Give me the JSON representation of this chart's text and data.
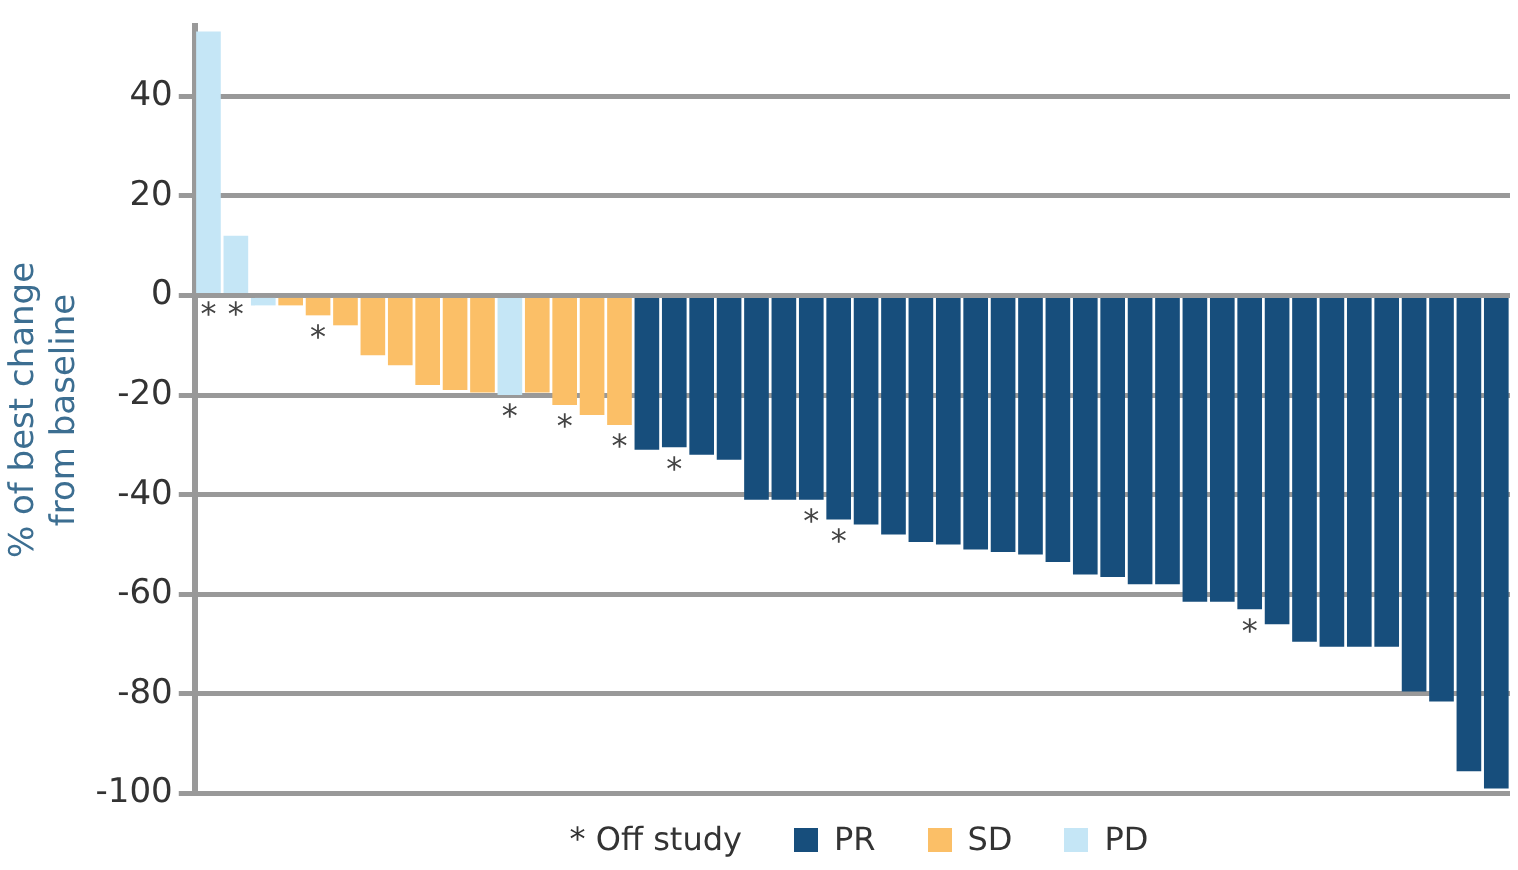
{
  "chart_data": {
    "type": "bar",
    "ylabel": "% of best change from baseline",
    "categories": [
      null,
      null,
      null,
      null,
      null,
      null,
      null,
      null,
      null,
      null,
      null,
      null,
      null,
      null,
      null,
      null,
      null,
      null,
      null,
      null,
      null,
      null,
      null,
      null,
      null,
      null,
      null,
      null,
      null,
      null,
      null,
      null,
      null,
      null,
      null,
      null,
      null,
      null,
      null,
      null,
      null,
      null,
      null,
      null,
      null,
      null,
      null,
      null
    ],
    "series": [
      {
        "name": "PR",
        "color": "#174e7c",
        "values": [
          null,
          null,
          null,
          null,
          null,
          null,
          null,
          null,
          null,
          null,
          null,
          null,
          null,
          null,
          null,
          null,
          -31,
          -30.5,
          -32,
          -33,
          -41,
          -41,
          -41,
          -45,
          -46,
          -48,
          -49.5,
          -50,
          -51,
          -51.5,
          -52,
          -53.5,
          -56,
          -56.5,
          -58,
          -58,
          -61.5,
          -61.5,
          -63,
          -66,
          -69.5,
          -70.5,
          -70.5,
          -70.5,
          -79.5,
          -81.5,
          -95.5,
          -99
        ],
        "value_labels": [
          null,
          null,
          null,
          null,
          null,
          null,
          null,
          null,
          null,
          null,
          null,
          null,
          null,
          null,
          null,
          null,
          null,
          "*",
          null,
          null,
          null,
          null,
          "*",
          "*",
          null,
          null,
          null,
          null,
          null,
          null,
          null,
          null,
          null,
          null,
          null,
          null,
          null,
          null,
          "*",
          null,
          null,
          null,
          null,
          null,
          null,
          null,
          null,
          null
        ]
      },
      {
        "name": "SD",
        "color": "#fbbf67",
        "values": [
          null,
          null,
          null,
          -2,
          -4,
          -6,
          -12,
          -14,
          -18,
          -19,
          -19.5,
          null,
          -19.5,
          -22,
          -24,
          -26,
          null,
          null,
          null,
          null,
          null,
          null,
          null,
          null,
          null,
          null,
          null,
          null,
          null,
          null,
          null,
          null,
          null,
          null,
          null,
          null,
          null,
          null,
          null,
          null,
          null,
          null,
          null,
          null,
          null,
          null,
          null,
          null
        ],
        "value_labels": [
          null,
          null,
          null,
          null,
          "*",
          null,
          null,
          null,
          null,
          null,
          null,
          null,
          null,
          "*",
          null,
          "*",
          null,
          null,
          null,
          null,
          null,
          null,
          null,
          null,
          null,
          null,
          null,
          null,
          null,
          null,
          null,
          null,
          null,
          null,
          null,
          null,
          null,
          null,
          null,
          null,
          null,
          null,
          null,
          null,
          null,
          null,
          null,
          null
        ]
      },
      {
        "name": "PD",
        "color": "#c5e6f6",
        "values": [
          53,
          12,
          -2,
          null,
          null,
          null,
          null,
          null,
          null,
          null,
          null,
          -20,
          null,
          null,
          null,
          null,
          null,
          null,
          null,
          null,
          null,
          null,
          null,
          null,
          null,
          null,
          null,
          null,
          null,
          null,
          null,
          null,
          null,
          null,
          null,
          null,
          null,
          null,
          null,
          null,
          null,
          null,
          null,
          null,
          null,
          null,
          null,
          null
        ],
        "value_labels": [
          "*",
          "*",
          null,
          null,
          null,
          null,
          null,
          null,
          null,
          null,
          null,
          "*",
          null,
          null,
          null,
          null,
          null,
          null,
          null,
          null,
          null,
          null,
          null,
          null,
          null,
          null,
          null,
          null,
          null,
          null,
          null,
          null,
          null,
          null,
          null,
          null,
          null,
          null,
          null,
          null,
          null,
          null,
          null,
          null,
          null,
          null,
          null,
          null
        ]
      }
    ],
    "ylim": [
      -100,
      54
    ],
    "yticks": [
      -100,
      -80,
      -60,
      -40,
      -20,
      0,
      20,
      40
    ],
    "grid": "y",
    "tick_labels": "y",
    "legend": "bottom",
    "annotations": [
      "* Off study"
    ]
  }
}
